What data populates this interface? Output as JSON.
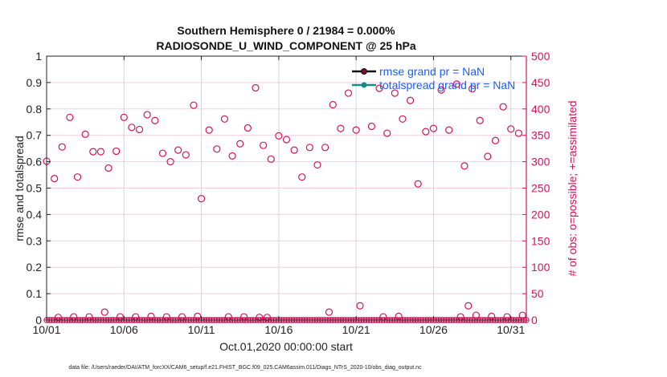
{
  "chart_data": {
    "type": "scatter",
    "title": "Southern Hemisphere 0 / 21984 = 0.000%",
    "subtitle": "RADIOSONDE_U_WIND_COMPONENT @ 25 hPa",
    "xlabel": "Oct.01,2020 00:00:00 start",
    "ylabel_left": "rmse and totalspread",
    "ylabel_right": "# of obs: o=possible; +=assimilated",
    "xlim": [
      "2020-10-01T00:00",
      "2020-11-01T00:00"
    ],
    "ylim_left": [
      0,
      1
    ],
    "ylim_right": [
      0,
      500
    ],
    "x_ticks": [
      {
        "label": "10/01",
        "t": "2020-10-01T00:00"
      },
      {
        "label": "10/06",
        "t": "2020-10-06T00:00"
      },
      {
        "label": "10/11",
        "t": "2020-10-11T00:00"
      },
      {
        "label": "10/16",
        "t": "2020-10-16T00:00"
      },
      {
        "label": "10/21",
        "t": "2020-10-21T00:00"
      },
      {
        "label": "10/26",
        "t": "2020-10-26T00:00"
      },
      {
        "label": "10/31",
        "t": "2020-10-31T00:00"
      }
    ],
    "y_ticks_left": [
      "0",
      "0.1",
      "0.2",
      "0.3",
      "0.4",
      "0.5",
      "0.6",
      "0.7",
      "0.8",
      "0.9",
      "1"
    ],
    "y_ticks_right": [
      "0",
      "50",
      "100",
      "150",
      "200",
      "250",
      "300",
      "350",
      "400",
      "450",
      "500"
    ],
    "grid": true,
    "legend_position": "top-right",
    "legend": [
      {
        "label": "rmse grand pr = NaN",
        "color": "#111111",
        "marker_color": "#7a0f2e"
      },
      {
        "label": "totalspread grand pr = NaN",
        "color": "#138a86",
        "marker_color": "#138a86"
      }
    ],
    "colors": {
      "obs": "#d4145a",
      "text_legend": "#1a5cff",
      "grid_h": "#f3cfdc",
      "grid_v": "#d6d6d6"
    },
    "series": [
      {
        "name": "possible",
        "axis": "right",
        "marker": "circle",
        "points": [
          [
            "2020-10-01T00:00",
            301
          ],
          [
            "2020-10-01T12:00",
            268
          ],
          [
            "2020-10-02T00:00",
            328
          ],
          [
            "2020-10-02T12:00",
            384
          ],
          [
            "2020-10-03T00:00",
            271
          ],
          [
            "2020-10-03T12:00",
            352
          ],
          [
            "2020-10-04T00:00",
            319
          ],
          [
            "2020-10-04T12:00",
            319
          ],
          [
            "2020-10-05T00:00",
            288
          ],
          [
            "2020-10-05T12:00",
            320
          ],
          [
            "2020-10-06T00:00",
            384
          ],
          [
            "2020-10-06T12:00",
            365
          ],
          [
            "2020-10-07T00:00",
            361
          ],
          [
            "2020-10-07T12:00",
            389
          ],
          [
            "2020-10-08T00:00",
            378
          ],
          [
            "2020-10-08T12:00",
            316
          ],
          [
            "2020-10-09T00:00",
            300
          ],
          [
            "2020-10-09T12:00",
            322
          ],
          [
            "2020-10-10T00:00",
            313
          ],
          [
            "2020-10-10T12:00",
            407
          ],
          [
            "2020-10-11T00:00",
            230
          ],
          [
            "2020-10-11T12:00",
            360
          ],
          [
            "2020-10-12T00:00",
            324
          ],
          [
            "2020-10-12T12:00",
            381
          ],
          [
            "2020-10-13T00:00",
            311
          ],
          [
            "2020-10-13T12:00",
            334
          ],
          [
            "2020-10-14T00:00",
            364
          ],
          [
            "2020-10-14T12:00",
            440
          ],
          [
            "2020-10-15T00:00",
            331
          ],
          [
            "2020-10-15T12:00",
            305
          ],
          [
            "2020-10-16T00:00",
            349
          ],
          [
            "2020-10-16T12:00",
            342
          ],
          [
            "2020-10-17T00:00",
            322
          ],
          [
            "2020-10-17T12:00",
            271
          ],
          [
            "2020-10-18T00:00",
            327
          ],
          [
            "2020-10-18T12:00",
            294
          ],
          [
            "2020-10-19T00:00",
            327
          ],
          [
            "2020-10-19T12:00",
            408
          ],
          [
            "2020-10-20T00:00",
            363
          ],
          [
            "2020-10-20T12:00",
            430
          ],
          [
            "2020-10-21T00:00",
            360
          ],
          [
            "2020-10-22T00:00",
            367
          ],
          [
            "2020-10-22T12:00",
            439
          ],
          [
            "2020-10-23T00:00",
            354
          ],
          [
            "2020-10-23T12:00",
            430
          ],
          [
            "2020-10-24T00:00",
            381
          ],
          [
            "2020-10-24T12:00",
            416
          ],
          [
            "2020-10-25T00:00",
            258
          ],
          [
            "2020-10-25T12:00",
            357
          ],
          [
            "2020-10-26T00:00",
            363
          ],
          [
            "2020-10-26T12:00",
            436
          ],
          [
            "2020-10-27T00:00",
            360
          ],
          [
            "2020-10-27T12:00",
            447
          ],
          [
            "2020-10-28T00:00",
            292
          ],
          [
            "2020-10-28T12:00",
            438
          ],
          [
            "2020-10-29T00:00",
            378
          ],
          [
            "2020-10-29T12:00",
            310
          ],
          [
            "2020-10-30T00:00",
            340
          ],
          [
            "2020-10-30T12:00",
            404
          ],
          [
            "2020-10-31T00:00",
            362
          ],
          [
            "2020-10-31T12:00",
            354
          ],
          [
            "2020-10-01T18:00",
            5
          ],
          [
            "2020-10-02T18:00",
            6
          ],
          [
            "2020-10-03T18:00",
            6
          ],
          [
            "2020-10-04T18:00",
            15
          ],
          [
            "2020-10-05T18:00",
            6
          ],
          [
            "2020-10-06T18:00",
            6
          ],
          [
            "2020-10-07T18:00",
            7
          ],
          [
            "2020-10-08T18:00",
            6
          ],
          [
            "2020-10-09T18:00",
            6
          ],
          [
            "2020-10-10T18:00",
            7
          ],
          [
            "2020-10-12T18:00",
            6
          ],
          [
            "2020-10-13T18:00",
            6
          ],
          [
            "2020-10-14T18:00",
            5
          ],
          [
            "2020-10-15T06:00",
            5
          ],
          [
            "2020-10-19T06:00",
            15
          ],
          [
            "2020-10-21T06:00",
            27
          ],
          [
            "2020-10-22T18:00",
            6
          ],
          [
            "2020-10-23T18:00",
            7
          ],
          [
            "2020-10-27T18:00",
            6
          ],
          [
            "2020-10-28T06:00",
            27
          ],
          [
            "2020-10-28T18:00",
            9
          ],
          [
            "2020-10-29T18:00",
            7
          ],
          [
            "2020-10-30T18:00",
            6
          ],
          [
            "2020-10-31T18:00",
            9
          ]
        ]
      },
      {
        "name": "assimilated",
        "axis": "right",
        "marker": "plus",
        "value": 0,
        "from": "2020-10-01T00:00",
        "to": "2020-11-01T00:00",
        "every_hours": 4
      }
    ]
  },
  "footer": "data file: /Users/raeder/DAI/ATM_forcXX/CAM6_setup/f.e21.FHIST_BGC.f09_025.CAM6assim.011/Diags_NTrS_2020-10/obs_diag_output.nc"
}
